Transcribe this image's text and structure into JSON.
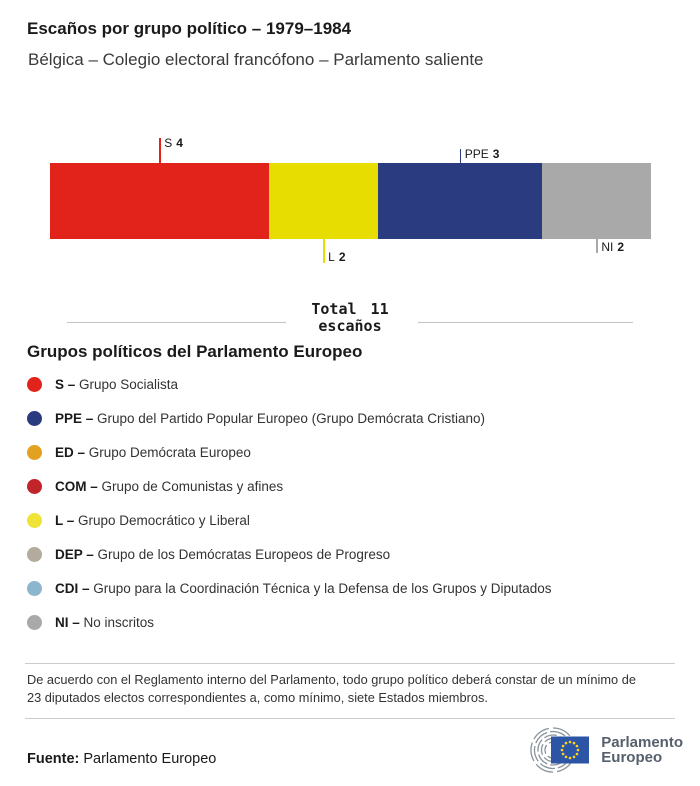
{
  "header": {
    "title": "Escaños por grupo político – 1979–1984",
    "subtitle": "Bélgica – Colegio electoral francófono – Parlamento saliente"
  },
  "chart_data": {
    "type": "bar",
    "orientation": "horizontal-stacked",
    "title": "Escaños por grupo político – 1979–1984",
    "subtitle": "Bélgica – Colegio electoral francófono – Parlamento saliente",
    "total_seats": 11,
    "unit": "escaños",
    "segments": [
      {
        "group": "S",
        "seats": 4,
        "color": "#e2231b",
        "label_position": "above"
      },
      {
        "group": "L",
        "seats": 2,
        "color": "#e8dd00",
        "label_position": "below"
      },
      {
        "group": "PPE",
        "seats": 3,
        "color": "#2b3b7f",
        "label_position": "above"
      },
      {
        "group": "NI",
        "seats": 2,
        "color": "#a9a9a9",
        "label_position": "below"
      }
    ]
  },
  "total": {
    "line1": "Total 11",
    "line2": "escaños"
  },
  "legend": {
    "heading": "Grupos políticos del Parlamento Europeo",
    "separator": "–",
    "items": [
      {
        "abbr": "S",
        "name": "Grupo Socialista",
        "color": "#e2231b"
      },
      {
        "abbr": "PPE",
        "name": "Grupo del Partido Popular Europeo (Grupo Demócrata Cristiano)",
        "color": "#2b3b7f"
      },
      {
        "abbr": "ED",
        "name": "Grupo Demócrata Europeo",
        "color": "#e4a020"
      },
      {
        "abbr": "COM",
        "name": "Grupo de Comunistas y afines",
        "color": "#c2242c"
      },
      {
        "abbr": "L",
        "name": "Grupo Democrático y Liberal",
        "color": "#efe337"
      },
      {
        "abbr": "DEP",
        "name": "Grupo de los Demócratas Europeos de Progreso",
        "color": "#b3ab9c"
      },
      {
        "abbr": "CDI",
        "name": "Grupo para la Coordinación Técnica y la Defensa de los Grupos y Diputados",
        "color": "#8cb6ce"
      },
      {
        "abbr": "NI",
        "name": "No inscritos",
        "color": "#a9a9a9"
      }
    ]
  },
  "footer": {
    "note": "De acuerdo con el Reglamento interno del Parlamento, todo grupo político deberá constar de un mínimo de 23 diputados electos correspondientes a, como mínimo, siete Estados miembros.",
    "source_label": "Fuente:",
    "source_value": "Parlamento Europeo",
    "logo_line1": "Parlamento",
    "logo_line2": "Europeo",
    "logo_colors": {
      "arcs": "#8a929b",
      "flag": "#2d55a5",
      "stars": "#ffd617",
      "text": "#56606c"
    }
  }
}
